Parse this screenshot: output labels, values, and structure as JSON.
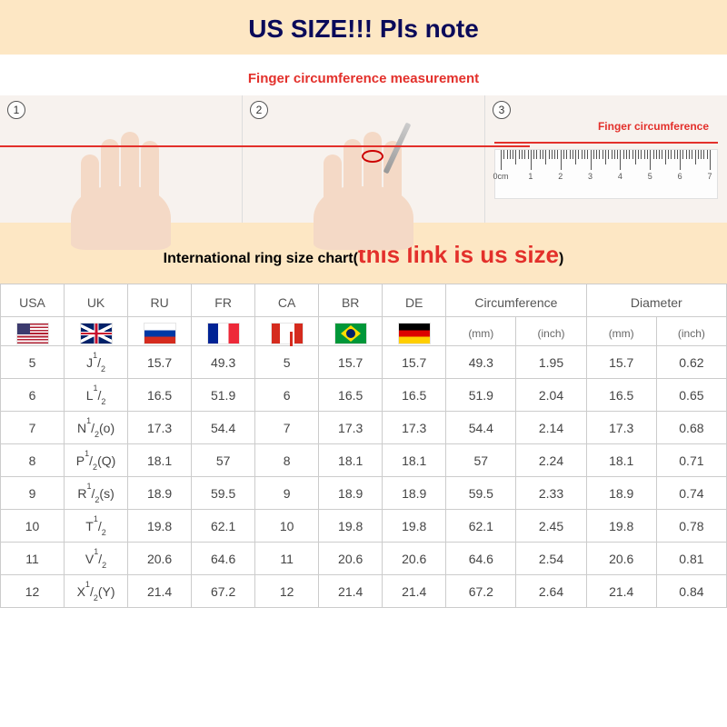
{
  "banner": {
    "title": "US SIZE!!! Pls note",
    "bg_color": "#fde7c4",
    "title_color": "#0a0a5a"
  },
  "subtitle": {
    "text": "Finger circumference measurement",
    "color": "#e3302b"
  },
  "steps": {
    "bg_color": "#f7f2ee",
    "red_line_color": "#e3302b",
    "skin_color": "#f4d9c6",
    "items": [
      {
        "num": "1"
      },
      {
        "num": "2"
      },
      {
        "num": "3",
        "label": "Finger circumference",
        "label_color": "#e3302b"
      }
    ],
    "ruler": {
      "start_label": "0cm",
      "majors": [
        "1",
        "2",
        "3",
        "4",
        "5",
        "6",
        "7"
      ]
    }
  },
  "chart_title": {
    "prefix": "International ring size chart(",
    "highlight": "this link is us size",
    "suffix": ")",
    "bg_color": "#fde7c4",
    "highlight_color": "#e3302b"
  },
  "table": {
    "headers": [
      "USA",
      "UK",
      "RU",
      "FR",
      "CA",
      "BR",
      "DE"
    ],
    "group_headers": [
      "Circumference",
      "Diameter"
    ],
    "sub_units": [
      "(mm)",
      "(inch)",
      "(mm)",
      "(inch)"
    ],
    "flags": [
      "usa",
      "uk",
      "ru",
      "fr",
      "ca",
      "br",
      "de"
    ],
    "uk_format": [
      {
        "main": "J",
        "sup": "1",
        "sub": "2",
        "paren": ""
      },
      {
        "main": "L",
        "sup": "1",
        "sub": "2",
        "paren": ""
      },
      {
        "main": "N",
        "sup": "1",
        "sub": "2",
        "paren": "(o)"
      },
      {
        "main": "P",
        "sup": "1",
        "sub": "2",
        "paren": "(Q)"
      },
      {
        "main": "R",
        "sup": "1",
        "sub": "2",
        "paren": "(s)"
      },
      {
        "main": "T",
        "sup": "1",
        "sub": "2",
        "paren": ""
      },
      {
        "main": "V",
        "sup": "1",
        "sub": "2",
        "paren": ""
      },
      {
        "main": "X",
        "sup": "1",
        "sub": "2",
        "paren": "(Y)"
      }
    ],
    "rows": [
      [
        "5",
        "",
        "15.7",
        "49.3",
        "5",
        "15.7",
        "15.7",
        "49.3",
        "1.95",
        "15.7",
        "0.62"
      ],
      [
        "6",
        "",
        "16.5",
        "51.9",
        "6",
        "16.5",
        "16.5",
        "51.9",
        "2.04",
        "16.5",
        "0.65"
      ],
      [
        "7",
        "",
        "17.3",
        "54.4",
        "7",
        "17.3",
        "17.3",
        "54.4",
        "2.14",
        "17.3",
        "0.68"
      ],
      [
        "8",
        "",
        "18.1",
        "57",
        "8",
        "18.1",
        "18.1",
        "57",
        "2.24",
        "18.1",
        "0.71"
      ],
      [
        "9",
        "",
        "18.9",
        "59.5",
        "9",
        "18.9",
        "18.9",
        "59.5",
        "2.33",
        "18.9",
        "0.74"
      ],
      [
        "10",
        "",
        "19.8",
        "62.1",
        "10",
        "19.8",
        "19.8",
        "62.1",
        "2.45",
        "19.8",
        "0.78"
      ],
      [
        "11",
        "",
        "20.6",
        "64.6",
        "11",
        "20.6",
        "20.6",
        "64.6",
        "2.54",
        "20.6",
        "0.81"
      ],
      [
        "12",
        "",
        "21.4",
        "67.2",
        "12",
        "21.4",
        "21.4",
        "67.2",
        "2.64",
        "21.4",
        "0.84"
      ]
    ]
  }
}
